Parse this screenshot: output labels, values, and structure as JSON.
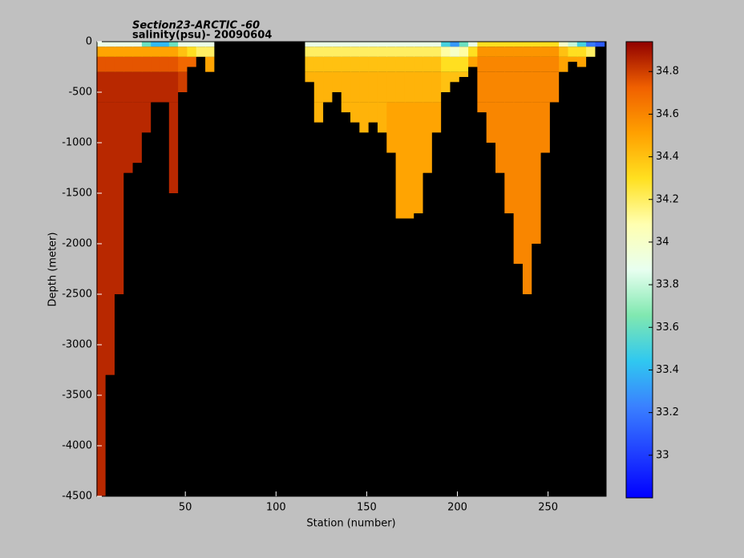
{
  "chart_data": {
    "type": "section",
    "title": "Section23-ARCTIC  -60",
    "subtitle": "salinity(psu)- 20090604",
    "xlabel": "Station (number)",
    "ylabel": "Depth (meter)",
    "xlim": [
      1.3,
      282
    ],
    "xticks": [
      50,
      100,
      150,
      200,
      250
    ],
    "ylim": [
      -4500,
      0
    ],
    "yticks": [
      0,
      -500,
      -1000,
      -1500,
      -2000,
      -2500,
      -3000,
      -3500,
      -4000,
      -4500
    ],
    "clim": [
      32.8,
      34.94
    ],
    "cticks": [
      33,
      33.2,
      33.4,
      33.6,
      33.8,
      34,
      34.2,
      34.4,
      34.6,
      34.8
    ],
    "colormap": [
      "#0000ff",
      "#2040ff",
      "#3a80ff",
      "#30c8f0",
      "#80e8b0",
      "#e8fff0",
      "#ffffb0",
      "#ffe020",
      "#ffa000",
      "#f06000",
      "#900000"
    ],
    "background": "#000000",
    "x_edges": [
      1,
      6,
      11,
      16,
      21,
      26,
      31,
      36,
      41,
      46,
      51,
      56,
      61,
      66,
      71,
      76,
      81,
      86,
      91,
      96,
      101,
      106,
      111,
      116,
      121,
      126,
      131,
      136,
      141,
      146,
      151,
      156,
      161,
      166,
      171,
      176,
      181,
      186,
      191,
      196,
      201,
      206,
      211,
      216,
      221,
      226,
      231,
      236,
      241,
      246,
      251,
      256,
      261,
      266,
      271,
      276,
      281
    ],
    "depth_edges": [
      0,
      -50,
      -150,
      -300,
      -600,
      -4500
    ],
    "bottom": [
      -4500,
      -3300,
      -2500,
      -1300,
      -1200,
      -900,
      -600,
      -600,
      -1500,
      -500,
      -250,
      -150,
      -300,
      0,
      0,
      0,
      0,
      0,
      0,
      0,
      0,
      0,
      0,
      -400,
      -800,
      -600,
      -500,
      -700,
      -800,
      -900,
      -800,
      -900,
      -1100,
      -1750,
      -1750,
      -1700,
      -1300,
      -900,
      -500,
      -400,
      -350,
      -250,
      -700,
      -1000,
      -1300,
      -1700,
      -2200,
      -2500,
      -2000,
      -1100,
      -600,
      -300,
      -200,
      -250,
      -150,
      -50
    ],
    "values": [
      [
        33.9,
        34.5,
        34.75,
        34.85,
        34.85
      ],
      [
        33.9,
        34.5,
        34.75,
        34.85,
        34.85
      ],
      [
        33.9,
        34.5,
        34.75,
        34.85,
        34.85
      ],
      [
        33.9,
        34.5,
        34.75,
        34.85,
        34.85
      ],
      [
        33.9,
        34.5,
        34.75,
        34.85,
        34.85
      ],
      [
        33.6,
        34.5,
        34.75,
        34.85,
        34.85
      ],
      [
        33.4,
        34.5,
        34.75,
        34.85,
        34.85
      ],
      [
        33.4,
        34.5,
        34.75,
        34.85,
        34.85
      ],
      [
        33.6,
        34.5,
        34.75,
        34.85,
        34.85
      ],
      [
        33.9,
        34.4,
        34.7,
        34.8,
        null
      ],
      [
        33.9,
        34.3,
        34.7,
        null,
        null
      ],
      [
        33.9,
        34.2,
        null,
        null,
        null
      ],
      [
        33.9,
        34.2,
        34.5,
        null,
        null
      ],
      [
        null,
        null,
        null,
        null,
        null
      ],
      [
        null,
        null,
        null,
        null,
        null
      ],
      [
        null,
        null,
        null,
        null,
        null
      ],
      [
        null,
        null,
        null,
        null,
        null
      ],
      [
        null,
        null,
        null,
        null,
        null
      ],
      [
        null,
        null,
        null,
        null,
        null
      ],
      [
        null,
        null,
        null,
        null,
        null
      ],
      [
        null,
        null,
        null,
        null,
        null
      ],
      [
        null,
        null,
        null,
        null,
        null
      ],
      [
        null,
        null,
        null,
        null,
        null
      ],
      [
        33.9,
        34.2,
        34.4,
        34.45,
        null
      ],
      [
        33.9,
        34.2,
        34.4,
        34.45,
        34.45
      ],
      [
        33.9,
        34.2,
        34.4,
        34.45,
        34.45
      ],
      [
        33.9,
        34.2,
        34.4,
        34.45,
        null
      ],
      [
        33.9,
        34.2,
        34.4,
        34.45,
        34.45
      ],
      [
        33.9,
        34.2,
        34.4,
        34.45,
        34.45
      ],
      [
        33.9,
        34.2,
        34.4,
        34.45,
        34.45
      ],
      [
        33.9,
        34.2,
        34.4,
        34.45,
        34.45
      ],
      [
        33.9,
        34.2,
        34.4,
        34.45,
        34.45
      ],
      [
        33.9,
        34.2,
        34.4,
        34.45,
        34.5
      ],
      [
        33.9,
        34.2,
        34.4,
        34.45,
        34.5
      ],
      [
        33.9,
        34.2,
        34.4,
        34.45,
        34.5
      ],
      [
        33.9,
        34.2,
        34.4,
        34.45,
        34.5
      ],
      [
        33.9,
        34.2,
        34.4,
        34.45,
        34.5
      ],
      [
        33.9,
        34.2,
        34.4,
        34.45,
        34.5
      ],
      [
        33.5,
        34.1,
        34.3,
        34.4,
        null
      ],
      [
        33.3,
        34.0,
        34.3,
        34.4,
        null
      ],
      [
        33.6,
        34.1,
        34.3,
        34.4,
        null
      ],
      [
        33.9,
        34.3,
        34.5,
        null,
        null
      ],
      [
        34.3,
        34.55,
        34.6,
        34.6,
        34.6
      ],
      [
        34.3,
        34.55,
        34.6,
        34.6,
        34.6
      ],
      [
        34.3,
        34.55,
        34.6,
        34.6,
        34.6
      ],
      [
        34.3,
        34.55,
        34.6,
        34.6,
        34.6
      ],
      [
        34.3,
        34.55,
        34.6,
        34.6,
        34.6
      ],
      [
        34.3,
        34.55,
        34.6,
        34.6,
        34.6
      ],
      [
        34.3,
        34.55,
        34.6,
        34.6,
        34.6
      ],
      [
        34.3,
        34.55,
        34.6,
        34.6,
        34.6
      ],
      [
        34.3,
        34.55,
        34.6,
        34.6,
        null
      ],
      [
        34.0,
        34.4,
        34.5,
        null,
        null
      ],
      [
        33.8,
        34.3,
        34.5,
        null,
        null
      ],
      [
        33.5,
        34.3,
        34.5,
        null,
        null
      ],
      [
        33.2,
        34.2,
        null,
        null,
        null
      ],
      [
        33.1,
        null,
        null,
        null,
        null
      ]
    ]
  }
}
